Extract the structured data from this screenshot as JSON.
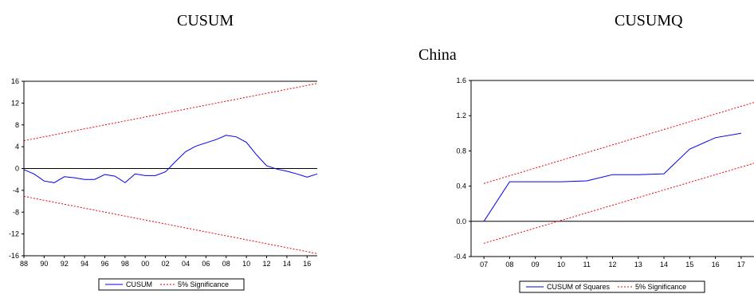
{
  "headings": {
    "left": "CUSUM",
    "right": "CUSUMQ",
    "country": "China"
  },
  "colors": {
    "series": "#0000ee",
    "bounds": "#ee0000",
    "axis": "#000000"
  },
  "chart_data": [
    {
      "type": "line",
      "xlim": [
        1988,
        2017
      ],
      "ylim": [
        -16,
        16
      ],
      "x_ticks": [
        "88",
        "90",
        "92",
        "94",
        "96",
        "98",
        "00",
        "02",
        "04",
        "06",
        "08",
        "10",
        "12",
        "14",
        "16"
      ],
      "y_ticks": [
        "16",
        "12",
        "8",
        "4",
        "0",
        "-4",
        "-8",
        "-12",
        "-16"
      ],
      "series": [
        {
          "name": "CUSUM",
          "x": [
            1988,
            1989,
            1990,
            1991,
            1992,
            1993,
            1994,
            1995,
            1996,
            1997,
            1998,
            1999,
            2000,
            2001,
            2002,
            2003,
            2004,
            2005,
            2006,
            2007,
            2008,
            2009,
            2010,
            2011,
            2012,
            2013,
            2014,
            2015,
            2016,
            2017
          ],
          "values": [
            -0.2,
            -1.0,
            -2.3,
            -2.6,
            -1.5,
            -1.7,
            -2.0,
            -2.0,
            -1.1,
            -1.4,
            -2.6,
            -1.0,
            -1.3,
            -1.3,
            -0.6,
            1.3,
            3.1,
            4.1,
            4.7,
            5.3,
            6.1,
            5.8,
            4.8,
            2.5,
            0.5,
            -0.1,
            -0.5,
            -1.0,
            -1.6,
            -1.0
          ]
        },
        {
          "name": "5% Significance",
          "x": [
            1988,
            2017
          ],
          "values": [
            5.1,
            15.6
          ]
        },
        {
          "name": "5% Significance",
          "x": [
            1988,
            2017
          ],
          "values": [
            -5.1,
            -15.6
          ]
        }
      ],
      "legend": [
        "CUSUM",
        "5% Significance"
      ],
      "legend_position": "bottom-center"
    },
    {
      "type": "line",
      "xlim": [
        2006.5,
        2017.5
      ],
      "ylim": [
        -0.4,
        1.6
      ],
      "x_ticks": [
        "07",
        "08",
        "09",
        "10",
        "11",
        "12",
        "13",
        "14",
        "15",
        "16",
        "17"
      ],
      "y_ticks": [
        "1.6",
        "1.2",
        "0.8",
        "0.4",
        "0.0",
        "-0.4"
      ],
      "series": [
        {
          "name": "CUSUM of Squares",
          "x": [
            2007,
            2008,
            2009,
            2010,
            2011,
            2012,
            2013,
            2014,
            2015,
            2016,
            2017
          ],
          "values": [
            0.0,
            0.45,
            0.45,
            0.45,
            0.46,
            0.53,
            0.53,
            0.54,
            0.82,
            0.95,
            1.0
          ]
        },
        {
          "name": "5% Significance",
          "x": [
            2007,
            2017.5
          ],
          "values": [
            0.43,
            1.35
          ]
        },
        {
          "name": "5% Significance",
          "x": [
            2007,
            2017.5
          ],
          "values": [
            -0.25,
            0.66
          ]
        }
      ],
      "legend": [
        "CUSUM of Squares",
        "5% Significance"
      ],
      "legend_position": "bottom-center"
    }
  ]
}
